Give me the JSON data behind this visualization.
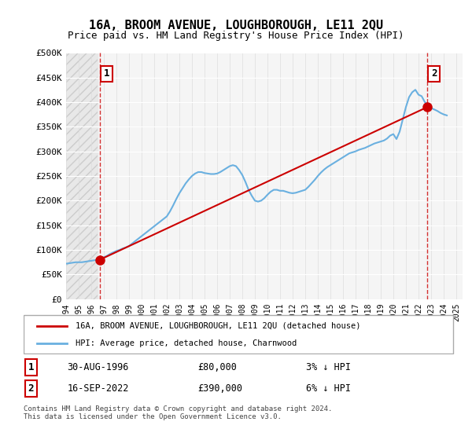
{
  "title": "16A, BROOM AVENUE, LOUGHBOROUGH, LE11 2QU",
  "subtitle": "Price paid vs. HM Land Registry's House Price Index (HPI)",
  "ylabel_ticks": [
    "£0",
    "£50K",
    "£100K",
    "£150K",
    "£200K",
    "£250K",
    "£300K",
    "£350K",
    "£400K",
    "£450K",
    "£500K"
  ],
  "ytick_values": [
    0,
    50000,
    100000,
    150000,
    200000,
    250000,
    300000,
    350000,
    400000,
    450000,
    500000
  ],
  "ylim": [
    0,
    500000
  ],
  "xlim_start": 1994.0,
  "xlim_end": 2025.5,
  "xtick_years": [
    1994,
    1995,
    1996,
    1997,
    1998,
    1999,
    2000,
    2001,
    2002,
    2003,
    2004,
    2005,
    2006,
    2007,
    2008,
    2009,
    2010,
    2011,
    2012,
    2013,
    2014,
    2015,
    2016,
    2017,
    2018,
    2019,
    2020,
    2021,
    2022,
    2023,
    2024,
    2025
  ],
  "hpi_color": "#6ab0e0",
  "price_color": "#cc0000",
  "marker_color": "#cc0000",
  "dashed_line_color": "#cc0000",
  "background_plot": "#f5f5f5",
  "background_hatch": "#e8e8e8",
  "legend_label_price": "16A, BROOM AVENUE, LOUGHBOROUGH, LE11 2QU (detached house)",
  "legend_label_hpi": "HPI: Average price, detached house, Charnwood",
  "annotation1_label": "1",
  "annotation1_date": "30-AUG-1996",
  "annotation1_price": "£80,000",
  "annotation1_hpi": "3% ↓ HPI",
  "annotation1_year": 1996.67,
  "annotation1_value": 80000,
  "annotation2_label": "2",
  "annotation2_date": "16-SEP-2022",
  "annotation2_price": "£390,000",
  "annotation2_hpi": "6% ↓ HPI",
  "annotation2_year": 2022.71,
  "annotation2_value": 390000,
  "copyright_text": "Contains HM Land Registry data © Crown copyright and database right 2024.\nThis data is licensed under the Open Government Licence v3.0.",
  "hpi_data_x": [
    1994.0,
    1994.25,
    1994.5,
    1994.75,
    1995.0,
    1995.25,
    1995.5,
    1995.75,
    1996.0,
    1996.25,
    1996.5,
    1996.75,
    1997.0,
    1997.25,
    1997.5,
    1997.75,
    1998.0,
    1998.25,
    1998.5,
    1998.75,
    1999.0,
    1999.25,
    1999.5,
    1999.75,
    2000.0,
    2000.25,
    2000.5,
    2000.75,
    2001.0,
    2001.25,
    2001.5,
    2001.75,
    2002.0,
    2002.25,
    2002.5,
    2002.75,
    2003.0,
    2003.25,
    2003.5,
    2003.75,
    2004.0,
    2004.25,
    2004.5,
    2004.75,
    2005.0,
    2005.25,
    2005.5,
    2005.75,
    2006.0,
    2006.25,
    2006.5,
    2006.75,
    2007.0,
    2007.25,
    2007.5,
    2007.75,
    2008.0,
    2008.25,
    2008.5,
    2008.75,
    2009.0,
    2009.25,
    2009.5,
    2009.75,
    2010.0,
    2010.25,
    2010.5,
    2010.75,
    2011.0,
    2011.25,
    2011.5,
    2011.75,
    2012.0,
    2012.25,
    2012.5,
    2012.75,
    2013.0,
    2013.25,
    2013.5,
    2013.75,
    2014.0,
    2014.25,
    2014.5,
    2014.75,
    2015.0,
    2015.25,
    2015.5,
    2015.75,
    2016.0,
    2016.25,
    2016.5,
    2016.75,
    2017.0,
    2017.25,
    2017.5,
    2017.75,
    2018.0,
    2018.25,
    2018.5,
    2018.75,
    2019.0,
    2019.25,
    2019.5,
    2019.75,
    2020.0,
    2020.25,
    2020.5,
    2020.75,
    2021.0,
    2021.25,
    2021.5,
    2021.75,
    2022.0,
    2022.25,
    2022.5,
    2022.75,
    2023.0,
    2023.25,
    2023.5,
    2023.75,
    2024.0,
    2024.25
  ],
  "hpi_data_y": [
    72000,
    73000,
    74000,
    75000,
    75000,
    75000,
    76000,
    77000,
    78000,
    79000,
    80000,
    82000,
    85000,
    88000,
    92000,
    95000,
    98000,
    100000,
    103000,
    105000,
    108000,
    113000,
    118000,
    123000,
    128000,
    133000,
    138000,
    143000,
    148000,
    153000,
    158000,
    163000,
    168000,
    178000,
    190000,
    203000,
    215000,
    225000,
    235000,
    243000,
    250000,
    255000,
    258000,
    258000,
    256000,
    255000,
    254000,
    254000,
    255000,
    258000,
    262000,
    266000,
    270000,
    272000,
    270000,
    262000,
    252000,
    238000,
    222000,
    210000,
    200000,
    198000,
    200000,
    205000,
    212000,
    218000,
    222000,
    222000,
    220000,
    220000,
    218000,
    216000,
    215000,
    216000,
    218000,
    220000,
    222000,
    228000,
    235000,
    242000,
    250000,
    257000,
    263000,
    268000,
    272000,
    276000,
    280000,
    284000,
    288000,
    292000,
    296000,
    298000,
    300000,
    303000,
    305000,
    307000,
    310000,
    313000,
    316000,
    318000,
    320000,
    322000,
    326000,
    332000,
    335000,
    325000,
    340000,
    365000,
    390000,
    410000,
    420000,
    425000,
    415000,
    412000,
    400000,
    395000,
    388000,
    385000,
    382000,
    378000,
    375000,
    373000
  ],
  "price_data_x": [
    1996.67,
    2022.71
  ],
  "price_data_y": [
    80000,
    390000
  ]
}
